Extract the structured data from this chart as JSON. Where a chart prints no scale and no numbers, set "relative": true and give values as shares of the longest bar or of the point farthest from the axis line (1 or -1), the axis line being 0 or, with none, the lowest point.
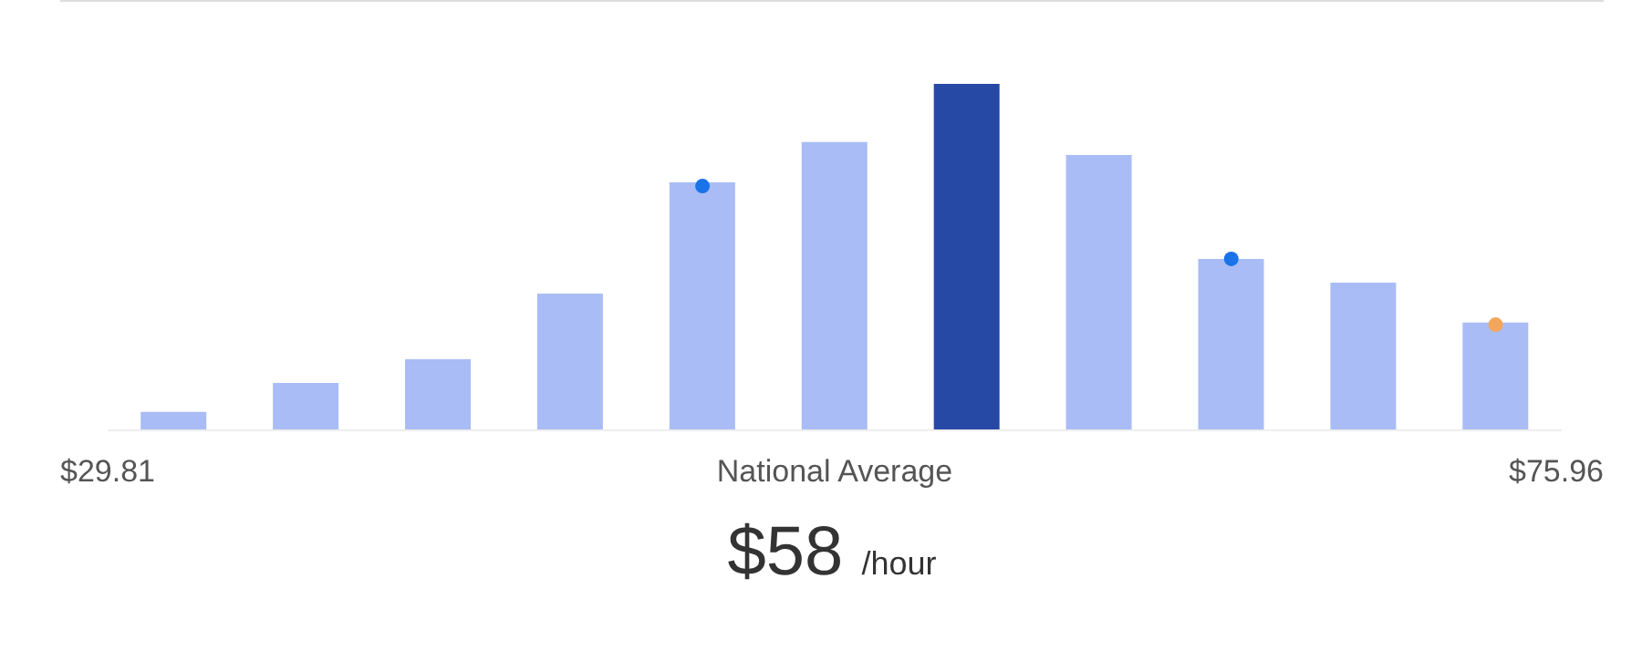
{
  "chart_data": {
    "type": "bar",
    "relative": true,
    "categories": [
      "$29.81",
      null,
      null,
      null,
      null,
      "National Average",
      null,
      null,
      null,
      null,
      "$75.96"
    ],
    "values": [
      0.053,
      0.137,
      0.205,
      0.395,
      0.716,
      0.832,
      1,
      0.795,
      0.495,
      0.426,
      0.311
    ],
    "colors": [
      "#a9bcf5",
      "#a9bcf5",
      "#a9bcf5",
      "#a9bcf5",
      "#a9bcf5",
      "#a9bcf5",
      "#2749a6",
      "#a9bcf5",
      "#a9bcf5",
      "#a9bcf5",
      "#a9bcf5"
    ],
    "series": [
      {
        "type": "scatter",
        "color": "#1a73e8",
        "values": [
          null,
          null,
          null,
          null,
          0.705,
          null,
          null,
          null,
          0.495,
          null,
          null
        ]
      },
      {
        "type": "scatter",
        "color": "#f4a65a",
        "values": [
          null,
          null,
          null,
          null,
          null,
          null,
          null,
          null,
          null,
          null,
          0.305
        ]
      }
    ],
    "annotations": [
      "$58",
      "/hour"
    ]
  }
}
